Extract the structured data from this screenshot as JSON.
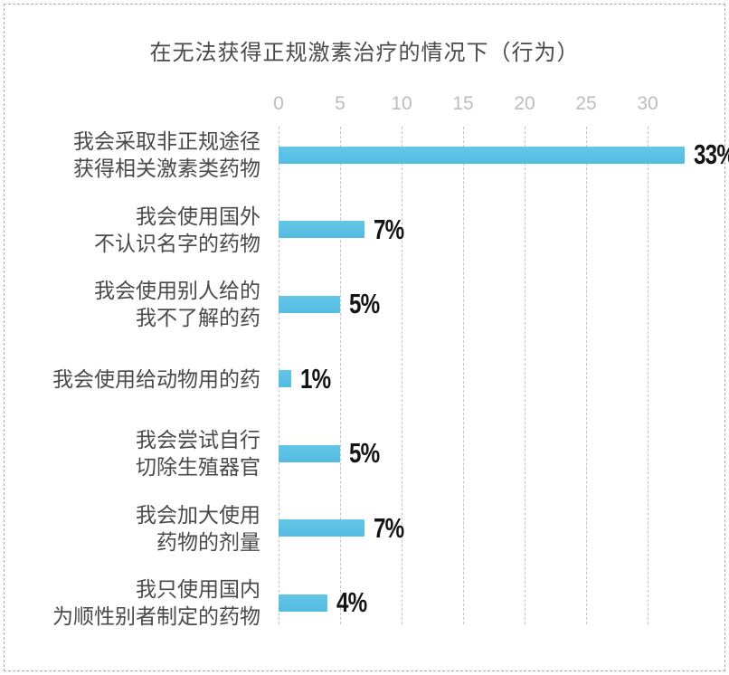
{
  "chart_data": {
    "type": "bar",
    "orientation": "horizontal",
    "title": "在无法获得正规激素治疗的情况下（行为）",
    "categories": [
      "我会采取非正规途径\n获得相关激素类药物",
      "我会使用国外\n不认识名字的药物",
      "我会使用别人给的\n我不了解的药",
      "我会使用给动物用的药",
      "我会尝试自行\n切除生殖器官",
      "我会加大使用\n药物的剂量",
      "我只使用国内\n为顺性别者制定的药物"
    ],
    "values": [
      33,
      7,
      5,
      1,
      5,
      7,
      4
    ],
    "value_labels": [
      "33%",
      "7%",
      "5%",
      "1%",
      "5%",
      "7%",
      "4%"
    ],
    "x_ticks": [
      0,
      5,
      10,
      15,
      20,
      25,
      30
    ],
    "xlim": [
      0,
      33
    ],
    "xlabel": "",
    "ylabel": "",
    "grid": "dashed-vertical",
    "legend": "none",
    "colors": {
      "bar": "#5bc0e2",
      "title_text": "#4a4a4a",
      "category_text": "#4a4a4a",
      "tick_text": "#bdbdbd",
      "value_text": "#141414",
      "gridline": "#c4c4c4",
      "frame_border": "#ababab"
    }
  }
}
